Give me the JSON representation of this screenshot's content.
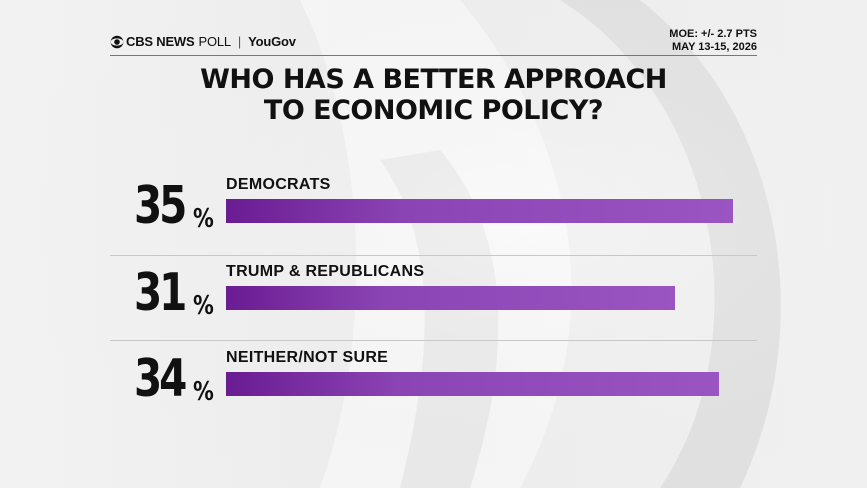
{
  "header": {
    "brand": "CBS NEWS",
    "poll": "POLL",
    "separator": "|",
    "partner": "YouGov",
    "moe": "MOE: +/- 2.7 PTS",
    "dates": "MAY 13-15, 2026"
  },
  "chart_data": {
    "type": "bar",
    "orientation": "horizontal",
    "title_lines": [
      "WHO HAS A BETTER APPROACH",
      "TO ECONOMIC POLICY?"
    ],
    "unit": "%",
    "categories": [
      "DEMOCRATS",
      "TRUMP & REPUBLICANS",
      "NEITHER/NOT SURE"
    ],
    "values": [
      35,
      31,
      34
    ],
    "value_labels": [
      "35",
      "31",
      "34"
    ],
    "xlim": [
      0,
      35
    ],
    "grid": false,
    "legend": "none",
    "colors": {
      "bar_start": "#6a1c92",
      "bar_end": "#9a55c2"
    }
  }
}
